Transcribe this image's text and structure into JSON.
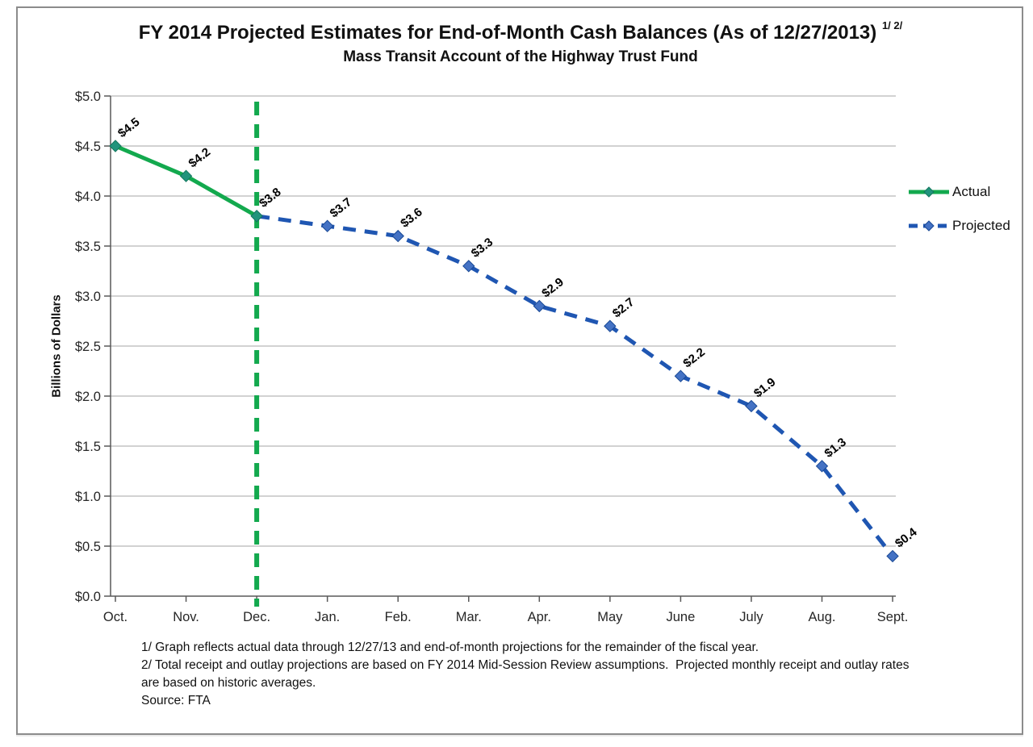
{
  "page": {
    "title": "FY 2014 Projected Estimates for End-of-Month Cash Balances (As of 12/27/2013)",
    "title_superscript": "1/ 2/",
    "subtitle": "Mass Transit Account of the Highway Trust Fund"
  },
  "chart_data": {
    "type": "line",
    "title": "FY 2014 Projected Estimates for End-of-Month Cash Balances (As of 12/27/2013) 1/ 2/",
    "subtitle": "Mass Transit Account of the Highway Trust Fund",
    "categories": [
      "Oct.",
      "Nov.",
      "Dec.",
      "Jan.",
      "Feb.",
      "Mar.",
      "Apr.",
      "May",
      "June",
      "July",
      "Aug.",
      "Sept."
    ],
    "series": [
      {
        "name": "Projected",
        "line_style": "dashed",
        "color": "#1F56B2",
        "marker_color": "#4472C4",
        "marker_edge": "#174794",
        "start_index": 2,
        "values": [
          3.8,
          3.7,
          3.6,
          3.3,
          2.9,
          2.7,
          2.2,
          1.9,
          1.3,
          0.4
        ],
        "labels": [
          "",
          "$3.7",
          "$3.6",
          "$3.3",
          "$2.9",
          "$2.7",
          "$2.2",
          "$1.9",
          "$1.3",
          "$0.4"
        ]
      },
      {
        "name": "Actual",
        "line_style": "solid",
        "color": "#13A94E",
        "marker_color": "#21947C",
        "marker_edge": "#14775E",
        "start_index": 0,
        "values": [
          4.5,
          4.2,
          3.8
        ],
        "labels": [
          "$4.5",
          "$4.2",
          "$3.8"
        ]
      }
    ],
    "xlabel": "",
    "ylabel": "Billions of Dollars",
    "ylim": [
      0,
      5
    ],
    "ytick_step": 0.5,
    "ytick_labels": [
      "$0.0",
      "$0.5",
      "$1.0",
      "$1.5",
      "$2.0",
      "$2.5",
      "$3.0",
      "$3.5",
      "$4.0",
      "$4.5",
      "$5.0"
    ],
    "grid": true,
    "legend_position": "right",
    "divider": {
      "category": "Dec.",
      "color": "#13A94E",
      "style": "dashed"
    }
  },
  "legend": {
    "items": [
      {
        "label": "Actual",
        "series": "Actual"
      },
      {
        "label": "Projected",
        "series": "Projected"
      }
    ]
  },
  "footnotes": {
    "lines": [
      "1/ Graph reflects actual data through 12/27/13 and end-of-month projections for the remainder of the fiscal year.",
      "2/ Total receipt and outlay projections are based on FY 2014 Mid-Session Review assumptions.  Projected monthly receipt and outlay rates",
      "are based on historic averages.",
      "Source: FTA"
    ]
  }
}
